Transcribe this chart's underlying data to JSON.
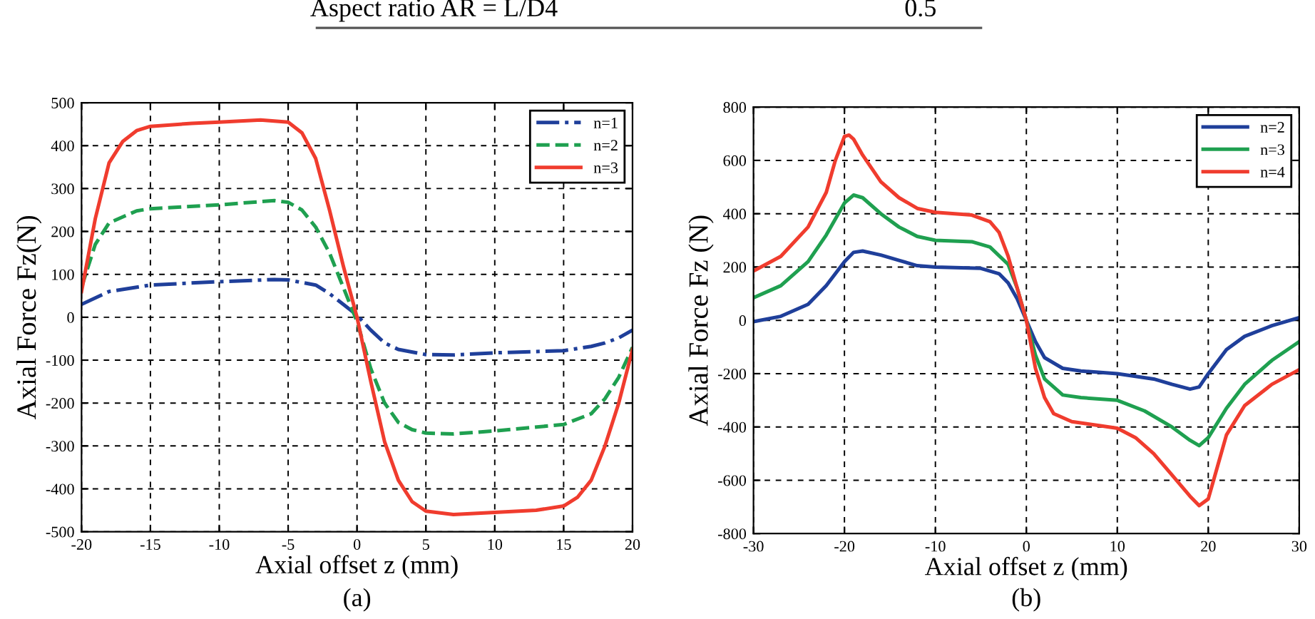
{
  "chart_data": [
    {
      "type": "line",
      "xlabel": "Axial offset z (mm)",
      "ylabel": "Axial Force Fz(N)",
      "xlim": [
        -20,
        20
      ],
      "ylim": [
        -500,
        500
      ],
      "xticks": [
        -20,
        -15,
        -10,
        -5,
        0,
        5,
        10,
        15,
        20
      ],
      "yticks": [
        -500,
        -400,
        -300,
        -200,
        -100,
        0,
        100,
        200,
        300,
        400,
        500
      ],
      "grid": true,
      "legend": "top right",
      "annotations": [
        "Aspect ratio AR = L/D4",
        "0.5",
        "(a)"
      ],
      "series": [
        {
          "name": "n=1",
          "color": "#1f3f9a",
          "line_style": "dashdot",
          "x": [
            -20,
            -18,
            -15,
            -10,
            -6,
            -5,
            -3,
            -2,
            -1,
            0,
            1,
            2,
            3,
            5,
            7,
            10,
            15,
            17,
            18,
            19,
            20
          ],
          "values": [
            30,
            60,
            75,
            83,
            88,
            87,
            75,
            55,
            30,
            5,
            -30,
            -60,
            -75,
            -87,
            -88,
            -83,
            -78,
            -68,
            -60,
            -48,
            -30
          ]
        },
        {
          "name": "n=2",
          "color": "#1fa050",
          "line_style": "dashed",
          "x": [
            -20,
            -19,
            -18,
            -16,
            -15,
            -10,
            -6,
            -5,
            -4,
            -3,
            -2,
            -1,
            0,
            1,
            2,
            3,
            4,
            5,
            7,
            10,
            15,
            17,
            18,
            19,
            20
          ],
          "values": [
            70,
            170,
            220,
            248,
            253,
            262,
            272,
            268,
            250,
            210,
            150,
            70,
            -10,
            -120,
            -200,
            -245,
            -262,
            -270,
            -272,
            -265,
            -250,
            -225,
            -190,
            -140,
            -70
          ]
        },
        {
          "name": "n=3",
          "color": "#f03c2e",
          "line_style": "solid",
          "x": [
            -20,
            -19,
            -18,
            -17,
            -16,
            -15,
            -12,
            -10,
            -7,
            -5,
            -4,
            -3,
            -2,
            -1,
            0,
            1,
            2,
            3,
            4,
            5,
            7,
            10,
            13,
            15,
            16,
            17,
            18,
            19,
            20
          ],
          "values": [
            60,
            230,
            360,
            410,
            435,
            445,
            452,
            455,
            460,
            455,
            430,
            370,
            250,
            120,
            0,
            -150,
            -290,
            -380,
            -430,
            -452,
            -460,
            -455,
            -450,
            -440,
            -420,
            -380,
            -300,
            -200,
            -75
          ]
        }
      ]
    },
    {
      "type": "line",
      "xlabel": "Axial offset z (mm)",
      "ylabel": "Axial Force Fz (N)",
      "xlim": [
        -30,
        30
      ],
      "ylim": [
        -800,
        800
      ],
      "xticks": [
        -30,
        -20,
        -10,
        0,
        10,
        20,
        30
      ],
      "yticks": [
        -800,
        -600,
        -400,
        -200,
        0,
        200,
        400,
        600,
        800
      ],
      "grid": true,
      "legend": "top right",
      "annotations": [
        "(b)"
      ],
      "series": [
        {
          "name": "n=2",
          "color": "#1f3f9a",
          "line_style": "solid",
          "x": [
            -30,
            -27,
            -24,
            -22,
            -20,
            -19,
            -18,
            -16,
            -14,
            -12,
            -10,
            -5,
            -3,
            -2,
            -1,
            0,
            1,
            2,
            4,
            6,
            10,
            14,
            16,
            18,
            19,
            20,
            22,
            24,
            27,
            30
          ],
          "values": [
            -5,
            15,
            60,
            130,
            220,
            255,
            260,
            245,
            225,
            205,
            200,
            195,
            175,
            140,
            80,
            0,
            -80,
            -140,
            -180,
            -190,
            -200,
            -220,
            -240,
            -258,
            -250,
            -200,
            -110,
            -60,
            -20,
            10
          ]
        },
        {
          "name": "n=3",
          "color": "#1fa050",
          "line_style": "solid",
          "x": [
            -30,
            -27,
            -24,
            -22,
            -20,
            -19,
            -18,
            -16,
            -14,
            -12,
            -10,
            -6,
            -4,
            -2,
            -1,
            0,
            1,
            2,
            4,
            6,
            10,
            13,
            16,
            18,
            19,
            20,
            22,
            24,
            27,
            30
          ],
          "values": [
            85,
            130,
            220,
            320,
            440,
            470,
            460,
            400,
            350,
            315,
            300,
            295,
            275,
            210,
            120,
            0,
            -130,
            -220,
            -280,
            -290,
            -300,
            -340,
            -400,
            -450,
            -470,
            -440,
            -330,
            -240,
            -150,
            -80
          ]
        },
        {
          "name": "n=4",
          "color": "#f03c2e",
          "line_style": "solid",
          "x": [
            -30,
            -27,
            -24,
            -22,
            -21,
            -20,
            -19.5,
            -19,
            -18,
            -16,
            -14,
            -12,
            -10,
            -6,
            -4,
            -3,
            -2,
            -1,
            0,
            1,
            2,
            3,
            5,
            8,
            10,
            12,
            14,
            16,
            18,
            19,
            20,
            21,
            22,
            24,
            27,
            30
          ],
          "values": [
            185,
            240,
            350,
            480,
            600,
            690,
            695,
            680,
            620,
            520,
            460,
            420,
            405,
            395,
            370,
            330,
            240,
            120,
            0,
            -180,
            -290,
            -350,
            -380,
            -395,
            -405,
            -440,
            -500,
            -580,
            -660,
            -695,
            -670,
            -550,
            -430,
            -320,
            -240,
            -185
          ]
        }
      ]
    }
  ]
}
